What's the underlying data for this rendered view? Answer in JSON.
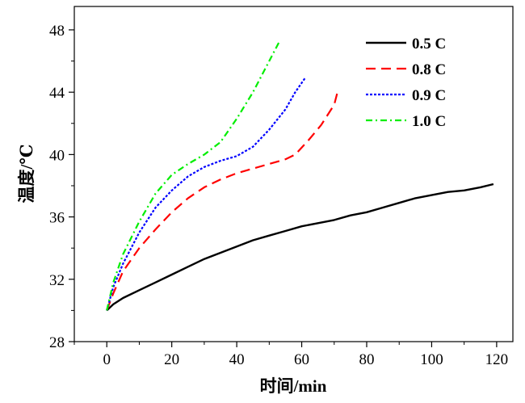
{
  "chart_data": {
    "type": "line",
    "xlabel": "时间/min",
    "ylabel": "温度/℃",
    "xlim": [
      -10,
      125
    ],
    "ylim": [
      28,
      49.5
    ],
    "xticks": [
      0,
      20,
      40,
      60,
      80,
      100,
      120
    ],
    "yticks": [
      28,
      32,
      36,
      40,
      44,
      48
    ],
    "grid": false,
    "legend_position": "top-right",
    "series": [
      {
        "name": "0.5 C",
        "color": "#000000",
        "style": "solid",
        "x": [
          0,
          2,
          5,
          10,
          15,
          20,
          25,
          30,
          35,
          40,
          45,
          50,
          55,
          60,
          65,
          70,
          75,
          80,
          85,
          90,
          95,
          100,
          105,
          110,
          115,
          119
        ],
        "y": [
          30.0,
          30.4,
          30.8,
          31.3,
          31.8,
          32.3,
          32.8,
          33.3,
          33.7,
          34.1,
          34.5,
          34.8,
          35.1,
          35.4,
          35.6,
          35.8,
          36.1,
          36.3,
          36.6,
          36.9,
          37.2,
          37.4,
          37.6,
          37.7,
          37.9,
          38.1
        ]
      },
      {
        "name": "0.8 C",
        "color": "#ff0000",
        "style": "dashed",
        "x": [
          0,
          2,
          5,
          10,
          15,
          20,
          25,
          30,
          35,
          40,
          45,
          50,
          55,
          58,
          62,
          66,
          70,
          71
        ],
        "y": [
          30.0,
          31.1,
          32.5,
          34.0,
          35.2,
          36.3,
          37.2,
          37.9,
          38.4,
          38.8,
          39.1,
          39.4,
          39.7,
          40.0,
          40.9,
          41.9,
          43.2,
          44.0
        ]
      },
      {
        "name": "0.9 C",
        "color": "#0000ff",
        "style": "dotted",
        "x": [
          0,
          2,
          5,
          10,
          15,
          20,
          25,
          30,
          35,
          40,
          45,
          50,
          55,
          58,
          61
        ],
        "y": [
          30.0,
          31.5,
          33.0,
          35.0,
          36.6,
          37.7,
          38.6,
          39.2,
          39.6,
          39.9,
          40.5,
          41.6,
          42.9,
          44.0,
          44.9
        ]
      },
      {
        "name": "1.0 C",
        "color": "#00ee00",
        "style": "dashdot",
        "x": [
          0,
          2,
          5,
          10,
          15,
          20,
          25,
          30,
          35,
          40,
          45,
          50,
          53
        ],
        "y": [
          30.0,
          31.8,
          33.6,
          35.7,
          37.5,
          38.7,
          39.4,
          40.0,
          40.8,
          42.3,
          44.0,
          46.0,
          47.2
        ]
      }
    ]
  }
}
